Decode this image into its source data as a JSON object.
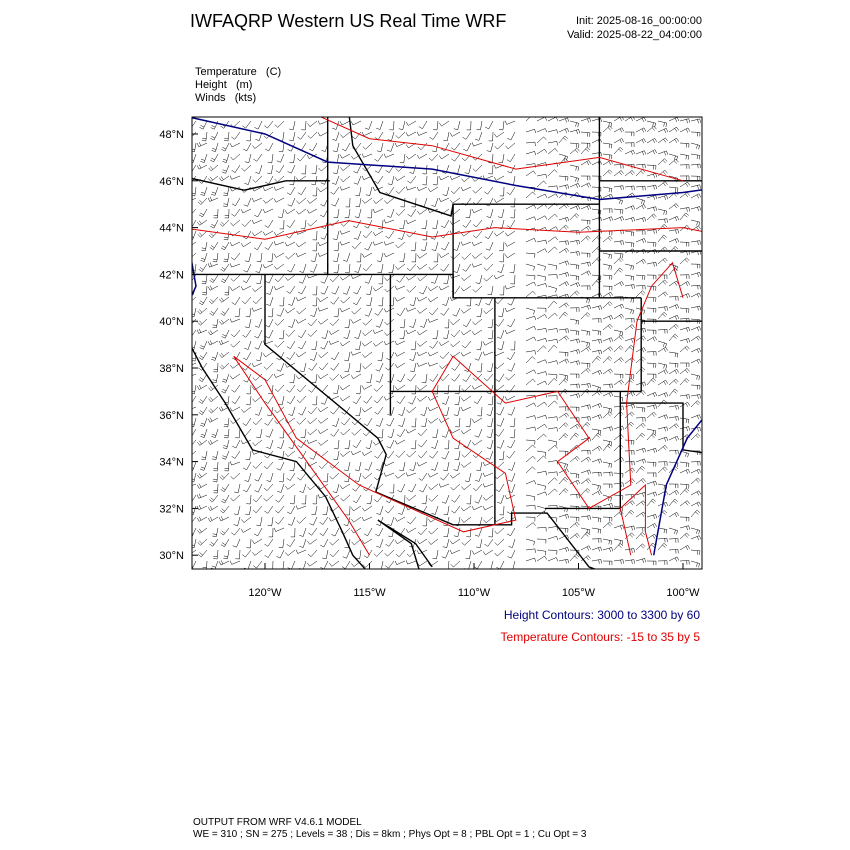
{
  "header": {
    "title": "IWFAQRP Western US Real Time WRF",
    "init": "Init: 2025-08-16_00:00:00",
    "valid": "Valid: 2025-08-22_04:00:00"
  },
  "fields": [
    "Temperature   (C)",
    "Height   (m)",
    "Winds   (kts)"
  ],
  "axes": {
    "lat_labels": [
      "48°N",
      "46°N",
      "44°N",
      "42°N",
      "40°N",
      "38°N",
      "36°N",
      "34°N",
      "32°N",
      "30°N"
    ],
    "lon_labels": [
      "120°W",
      "115°W",
      "110°W",
      "105°W",
      "100°W"
    ]
  },
  "legend": {
    "height": "Height Contours: 3000 to 3300 by 60",
    "temperature": "Temperature Contours: -15 to 35 by 5"
  },
  "footer": [
    "OUTPUT FROM WRF V4.6.1 MODEL",
    "WE = 310 ; SN = 275 ; Levels = 38 ; Dis = 8km ; Phys Opt = 8 ; PBL Opt = 1 ; Cu Opt = 3"
  ]
}
